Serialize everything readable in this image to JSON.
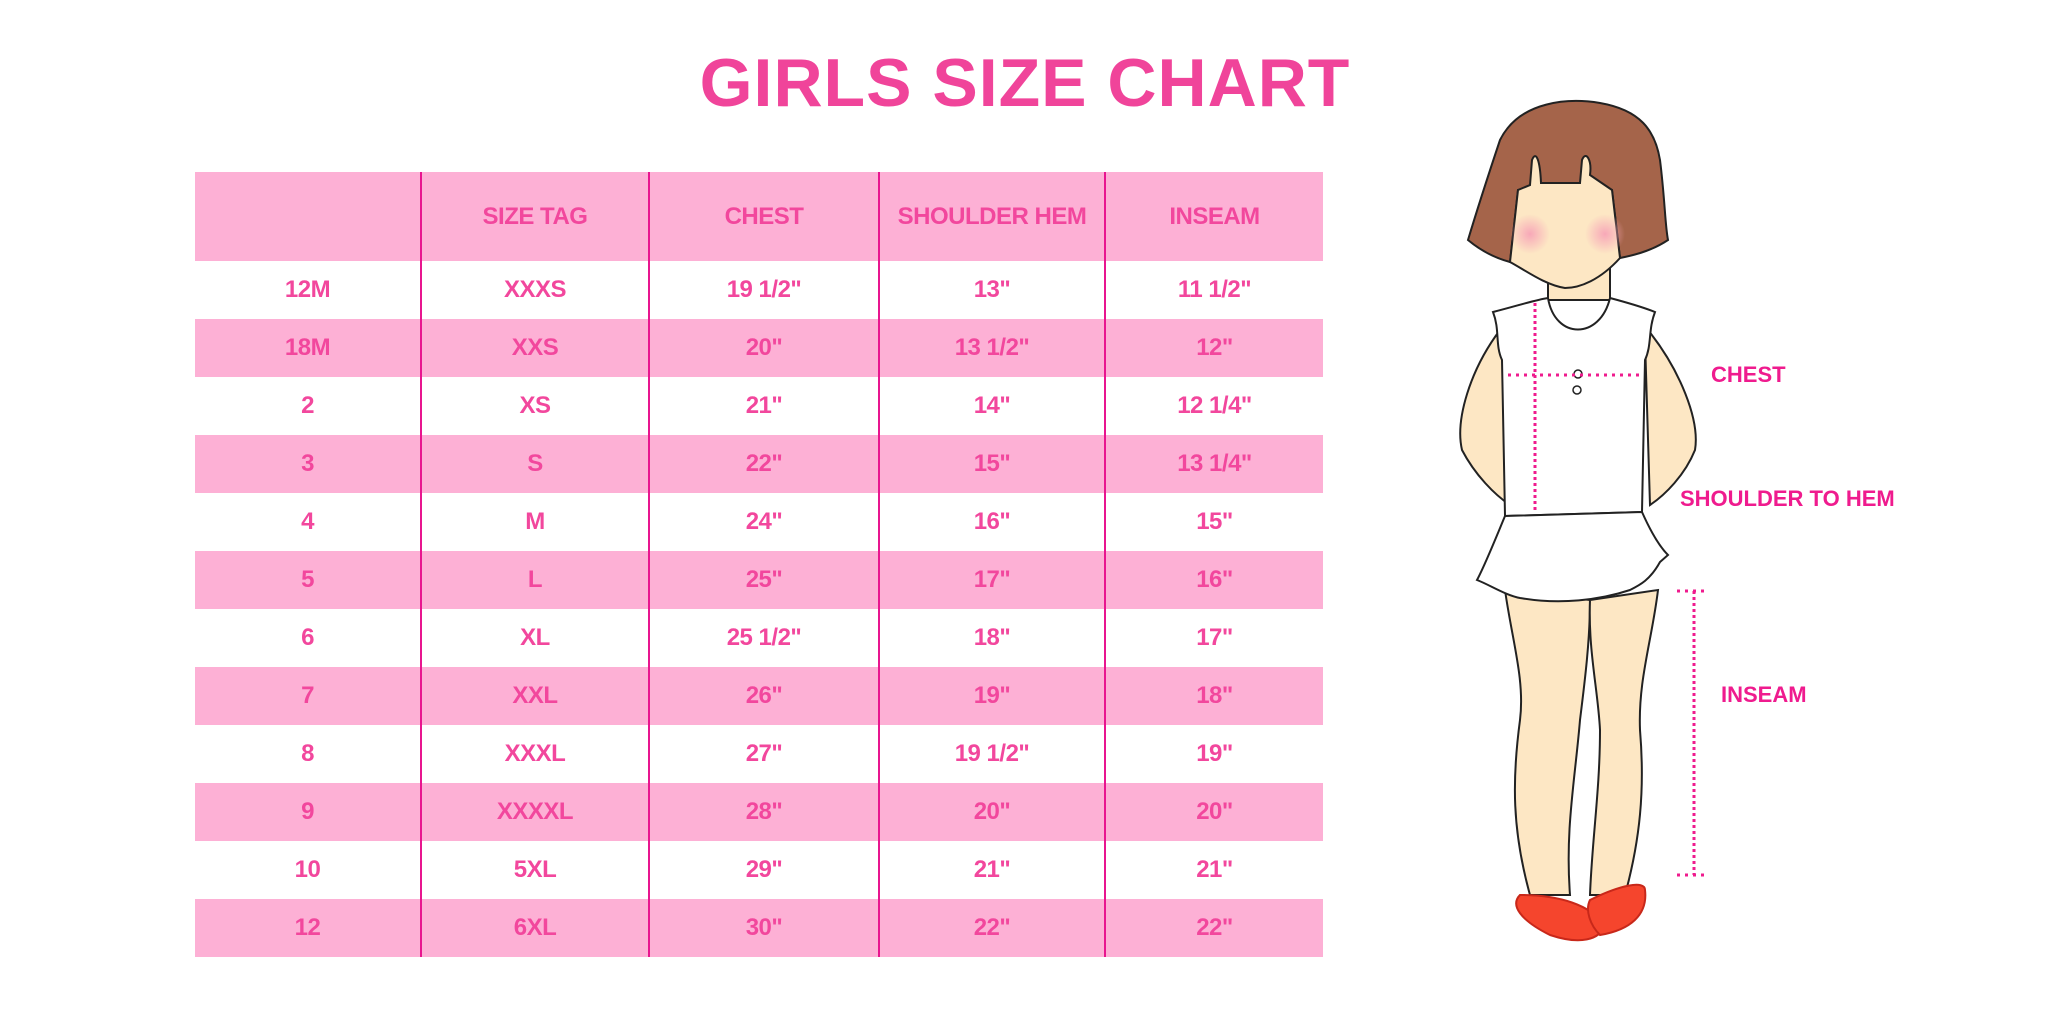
{
  "title": "GIRLS SIZE CHART",
  "table": {
    "headers": [
      "",
      "SIZE TAG",
      "CHEST",
      "SHOULDER HEM",
      "INSEAM"
    ],
    "rows": [
      [
        "12M",
        "XXXS",
        "19 1/2\"",
        "13\"",
        "11 1/2\""
      ],
      [
        "18M",
        "XXS",
        "20\"",
        "13 1/2\"",
        "12\""
      ],
      [
        "2",
        "XS",
        "21\"",
        "14\"",
        "12 1/4\""
      ],
      [
        "3",
        "S",
        "22\"",
        "15\"",
        "13 1/4\""
      ],
      [
        "4",
        "M",
        "24\"",
        "16\"",
        "15\""
      ],
      [
        "5",
        "L",
        "25\"",
        "17\"",
        "16\""
      ],
      [
        "6",
        "XL",
        "25 1/2\"",
        "18\"",
        "17\""
      ],
      [
        "7",
        "XXL",
        "26\"",
        "19\"",
        "18\""
      ],
      [
        "8",
        "XXXL",
        "27\"",
        "19 1/2\"",
        "19\""
      ],
      [
        "9",
        "XXXXL",
        "28\"",
        "20\"",
        "20\""
      ],
      [
        "10",
        "5XL",
        "29\"",
        "21\"",
        "21\""
      ],
      [
        "12",
        "6XL",
        "30\"",
        "22\"",
        "22\""
      ]
    ]
  },
  "figure": {
    "labels": {
      "chest": "CHEST",
      "shoulder_to_hem": "SHOULDER TO HEM",
      "inseam": "INSEAM"
    }
  },
  "colors": {
    "accent": "#f0449a",
    "row_pink": "#fdb0d5",
    "divider": "#e8158f",
    "measure_line": "#ef1b8e"
  }
}
